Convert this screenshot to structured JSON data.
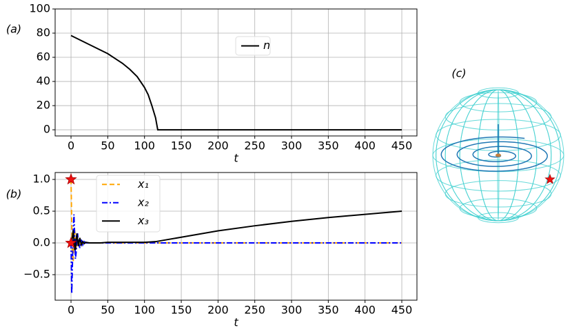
{
  "chart_data": [
    {
      "type": "line",
      "annotation": "(a)",
      "xlabel": "t",
      "x": [
        0,
        10,
        20,
        30,
        40,
        50,
        60,
        70,
        80,
        90,
        100,
        105,
        110,
        115,
        118,
        450
      ],
      "series": [
        {
          "name": "n",
          "color": "#000000",
          "values": [
            78,
            75,
            72,
            69,
            66,
            63,
            59,
            55,
            50,
            44,
            35,
            29,
            20,
            10,
            0,
            0
          ]
        }
      ],
      "xlim": [
        -21.6,
        470.6
      ],
      "xticks": [
        0,
        50,
        100,
        150,
        200,
        250,
        300,
        350,
        400,
        450
      ],
      "ylim": [
        -5.1,
        100
      ],
      "yticks": [
        0,
        20,
        40,
        60,
        80,
        100
      ],
      "grid": true
    },
    {
      "type": "line",
      "annotation": "(b)",
      "xlabel": "t",
      "x": [
        0,
        1,
        2,
        3,
        4,
        5,
        6,
        7,
        8,
        9,
        10,
        12,
        14,
        16,
        18,
        20,
        25,
        30,
        40,
        50,
        100,
        115,
        150,
        200,
        250,
        300,
        350,
        400,
        450
      ],
      "series": [
        {
          "name": "x₁",
          "color": "#ffa500",
          "dash": "7,4",
          "values": [
            1,
            0.3,
            -0.2,
            -0.3,
            0.1,
            0.2,
            0.05,
            -0.1,
            -0.05,
            0.05,
            0.03,
            -0.02,
            0.01,
            0,
            0,
            0,
            0,
            0,
            0,
            0,
            0,
            0,
            0,
            0,
            0,
            0,
            0,
            0,
            0
          ]
        },
        {
          "name": "x₂",
          "color": "#0000ff",
          "dash": "8,3,2,3",
          "values": [
            0,
            -0.8,
            -0.3,
            0.2,
            0.45,
            0.1,
            -0.25,
            -0.15,
            0.1,
            0.15,
            0,
            -0.08,
            0.05,
            -0.03,
            0.02,
            0,
            0,
            0,
            0,
            0,
            0,
            0,
            0,
            0,
            0,
            0,
            0,
            0,
            0
          ]
        },
        {
          "name": "x₃",
          "color": "#000000",
          "values": [
            0,
            0.02,
            0.1,
            0.2,
            0.05,
            -0.1,
            -0.1,
            0.05,
            0.15,
            0.05,
            -0.05,
            0.08,
            -0.03,
            0.02,
            -0.01,
            0.01,
            0,
            0,
            0,
            0.01,
            0.01,
            0.02,
            0.09,
            0.19,
            0.27,
            0.34,
            0.4,
            0.45,
            0.5
          ]
        }
      ],
      "markers": {
        "x": [
          0,
          0
        ],
        "y": [
          1,
          0
        ],
        "color": "#ee1111"
      },
      "xlim": [
        -21.6,
        470.6
      ],
      "xticks": [
        0,
        50,
        100,
        150,
        200,
        250,
        300,
        350,
        400,
        450
      ],
      "ylim": [
        -0.902,
        1.109
      ],
      "yticks": [
        {
          "value": -0.5,
          "label": "−0.5"
        },
        {
          "value": 0,
          "label": "0.0"
        },
        {
          "value": 0.5,
          "label": "0.5"
        },
        {
          "value": 1,
          "label": "1.0"
        }
      ],
      "grid": true
    }
  ],
  "panel_c": {
    "label": "(c)"
  }
}
